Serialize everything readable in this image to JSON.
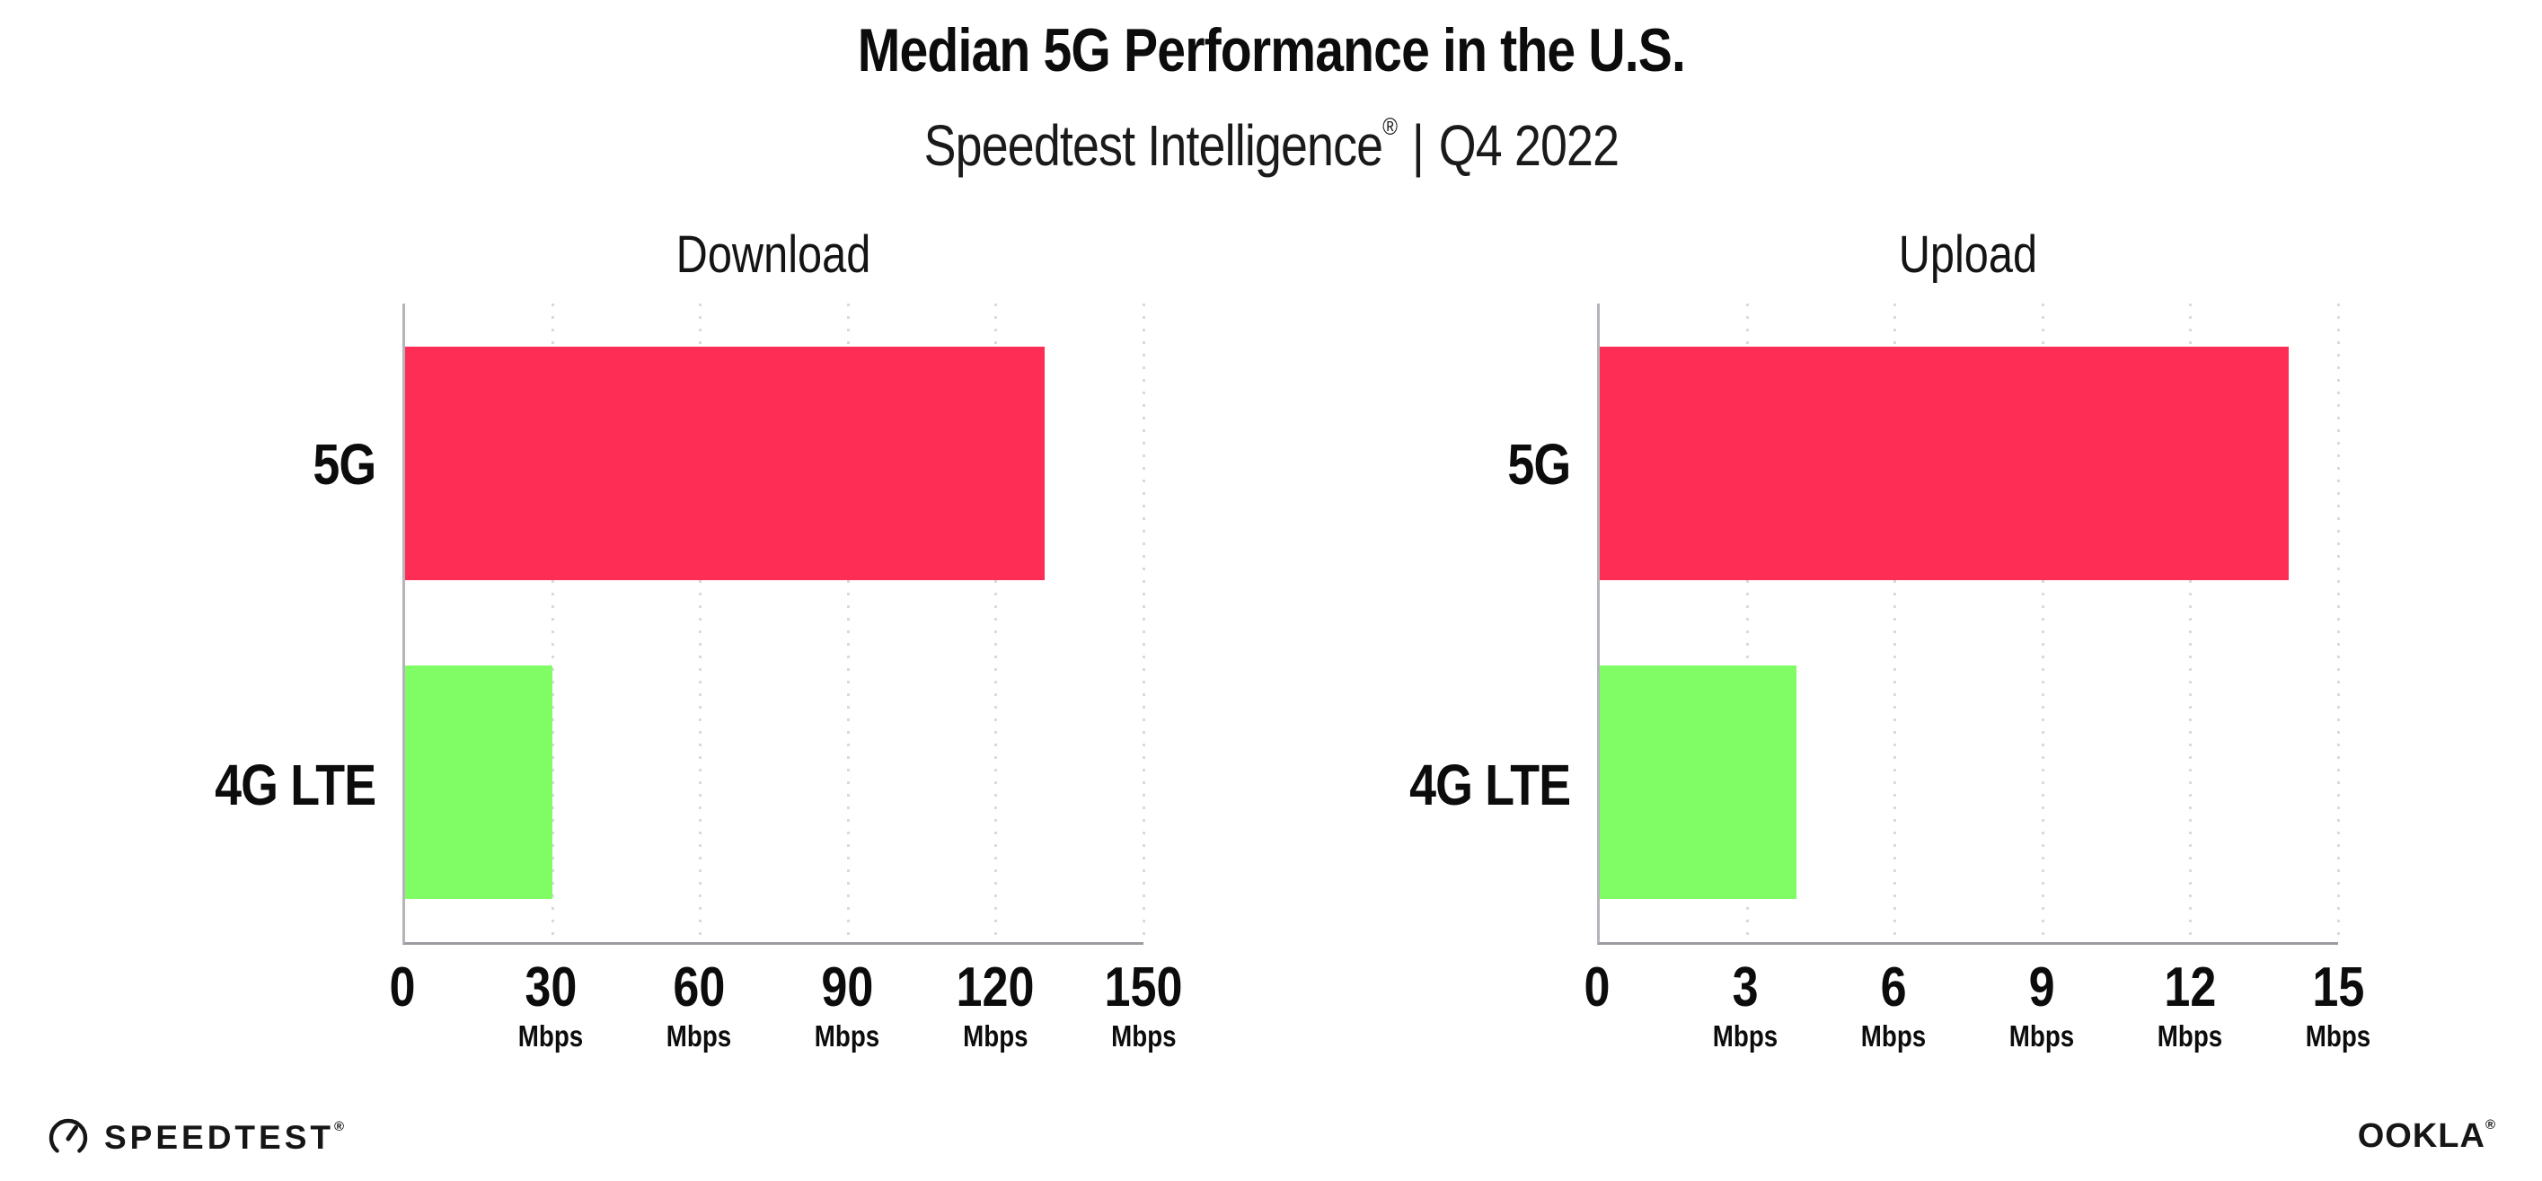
{
  "header": {
    "title": "Median 5G Performance in the U.S.",
    "subtitle_brand": "Speedtest Intelligence",
    "subtitle_reg": "®",
    "subtitle_separator": "|",
    "subtitle_period": "Q4 2022"
  },
  "footer": {
    "speedtest_label": "SPEEDTEST",
    "speedtest_reg": "®",
    "ookla_label": "OOKLA",
    "ookla_reg": "®"
  },
  "colors": {
    "bar_5g": "#FE2D55",
    "bar_4g_lte": "#80FC64",
    "gridline": "#D9D9E0",
    "axis_left": "#B4B4BA",
    "axis_bottom": "#9B9BA1",
    "text": "#0C0C0C"
  },
  "chart_data": [
    {
      "type": "bar",
      "orientation": "horizontal",
      "title": "Download",
      "categories": [
        "5G",
        "4G LTE"
      ],
      "values": [
        130,
        30
      ],
      "unit": "Mbps",
      "xlim": [
        0,
        150
      ],
      "xticks": [
        0,
        30,
        60,
        90,
        120,
        150
      ],
      "bar_colors": [
        "#FE2D55",
        "#80FC64"
      ],
      "grid": "vertical-dotted",
      "legend_position": "none"
    },
    {
      "type": "bar",
      "orientation": "horizontal",
      "title": "Upload",
      "categories": [
        "5G",
        "4G LTE"
      ],
      "values": [
        14,
        4
      ],
      "unit": "Mbps",
      "xlim": [
        0,
        15
      ],
      "xticks": [
        0,
        3,
        6,
        9,
        12,
        15
      ],
      "bar_colors": [
        "#FE2D55",
        "#80FC64"
      ],
      "grid": "vertical-dotted",
      "legend_position": "none"
    }
  ]
}
